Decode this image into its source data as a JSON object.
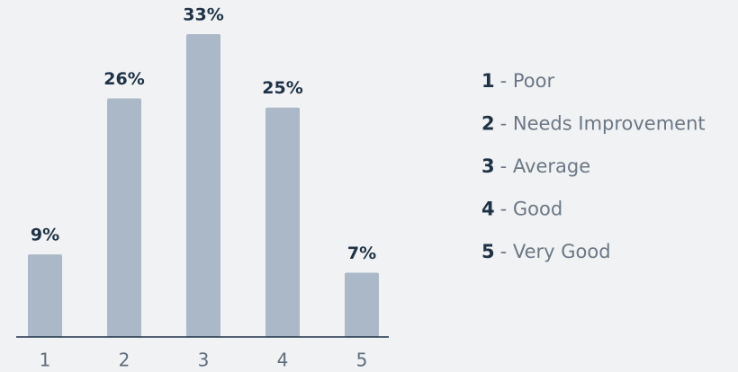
{
  "chart_data": {
    "type": "bar",
    "categories": [
      "1",
      "2",
      "3",
      "4",
      "5"
    ],
    "values": [
      9,
      26,
      33,
      25,
      7
    ],
    "value_labels": [
      "9%",
      "26%",
      "33%",
      "25%",
      "7%"
    ],
    "color": "#aab8c8",
    "legend": {
      "labels": [
        "- Poor",
        "- Needs Improvement",
        "- Average",
        "- Good",
        "- Very Good"
      ]
    }
  }
}
